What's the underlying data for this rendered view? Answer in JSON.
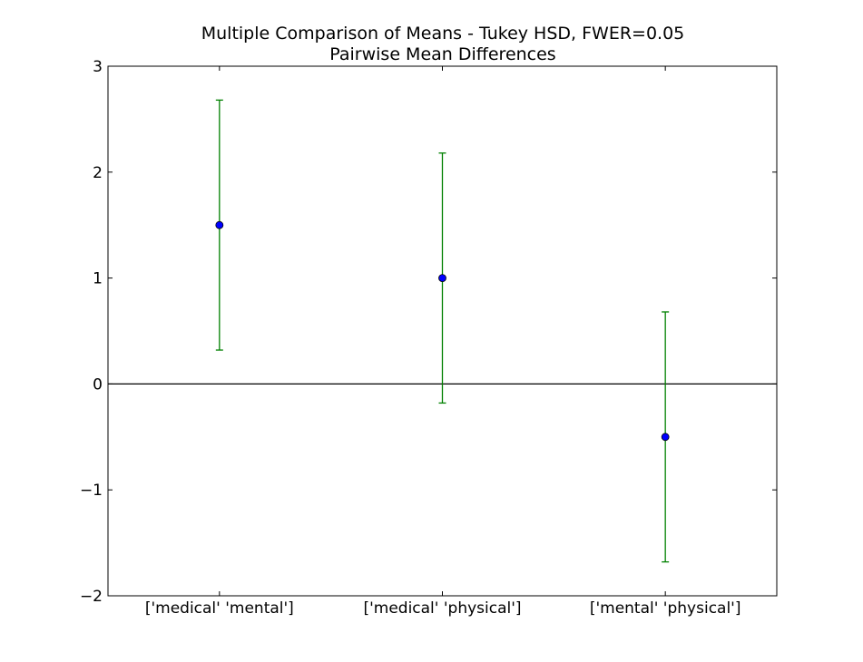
{
  "chart_data": {
    "type": "errorbar",
    "title": "Multiple Comparison of Means - Tukey HSD, FWER=0.05",
    "subtitle": "Pairwise Mean Differences",
    "xlabel": "",
    "ylabel": "",
    "categories": [
      "['medical' 'mental']",
      "['medical' 'physical']",
      "['mental' 'physical']"
    ],
    "values": [
      1.5,
      1.0,
      -0.5
    ],
    "lower": [
      0.32,
      -0.18,
      -1.68
    ],
    "upper": [
      2.68,
      2.18,
      0.68
    ],
    "ylim": [
      -2,
      3
    ],
    "yticks": [
      -2,
      -1,
      0,
      1,
      2,
      3
    ],
    "ytick_labels": [
      "−2",
      "−1",
      "0",
      "1",
      "2",
      "3"
    ],
    "reference_line": 0,
    "grid": false,
    "colors": {
      "point": "#0000ff",
      "errorbar": "#008000",
      "axes": "#000000"
    }
  }
}
